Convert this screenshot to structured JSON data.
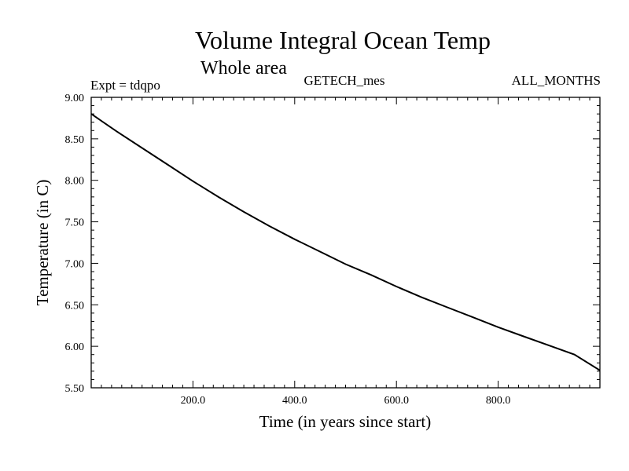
{
  "chart_data": {
    "type": "line",
    "title": "Volume Integral Ocean Temp",
    "subtitle": "Whole area",
    "expt_label": "Expt = tdqpo",
    "source_label": "GETECH_mes",
    "months_label": "ALL_MONTHS",
    "xlabel": "Time (in years since start)",
    "ylabel": "Temperature (in C)",
    "xlim": [
      0,
      1000
    ],
    "ylim": [
      5.5,
      9.0
    ],
    "x_ticks": [
      200,
      400,
      600,
      800
    ],
    "x_tick_labels": [
      "200.0",
      "400.0",
      "600.0",
      "800.0"
    ],
    "y_ticks": [
      5.5,
      6.0,
      6.5,
      7.0,
      7.5,
      8.0,
      8.5,
      9.0
    ],
    "y_tick_labels": [
      "5.50",
      "6.00",
      "6.50",
      "7.00",
      "7.50",
      "8.00",
      "8.50",
      "9.00"
    ],
    "series": [
      {
        "x": [
          0,
          50,
          100,
          150,
          200,
          250,
          300,
          350,
          400,
          450,
          500,
          550,
          600,
          650,
          700,
          750,
          800,
          850,
          900,
          950,
          1000
        ],
        "values": [
          8.8,
          8.59,
          8.39,
          8.19,
          7.99,
          7.8,
          7.62,
          7.45,
          7.29,
          7.14,
          6.99,
          6.86,
          6.72,
          6.59,
          6.47,
          6.35,
          6.23,
          6.12,
          6.01,
          5.9,
          5.71
        ]
      }
    ]
  }
}
